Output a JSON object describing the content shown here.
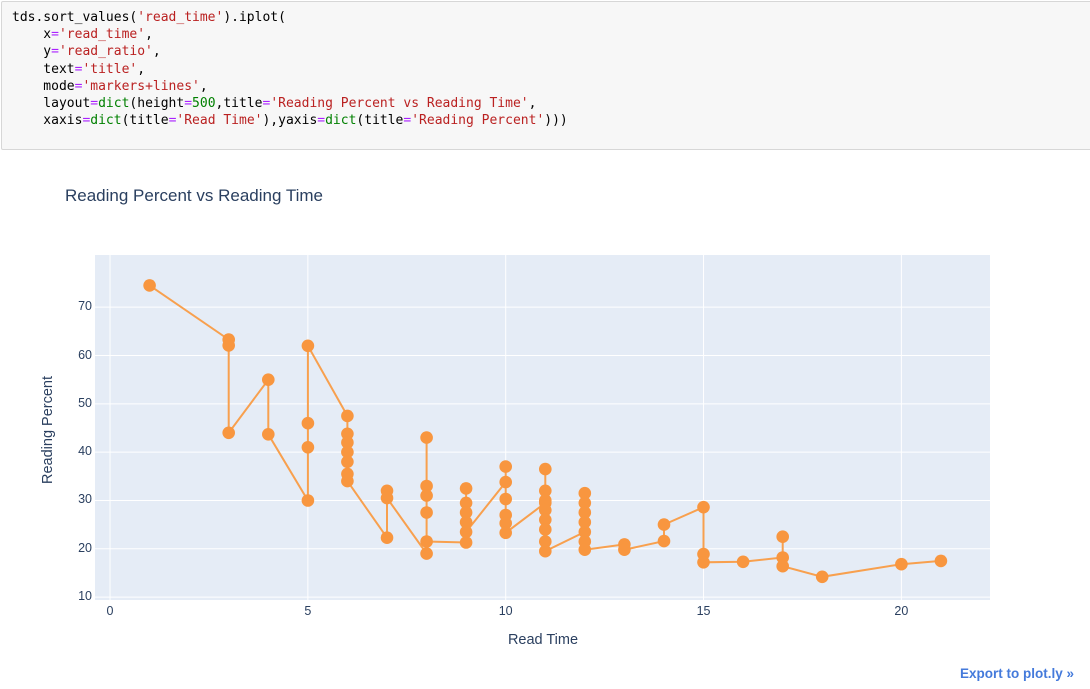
{
  "code_cell": {
    "lines": [
      [
        {
          "text": "tds.sort_values(",
          "type": "plain"
        },
        {
          "text": "'read_time'",
          "type": "string"
        },
        {
          "text": ").iplot(",
          "type": "plain"
        }
      ],
      [
        {
          "text": "    x",
          "type": "plain"
        },
        {
          "text": "=",
          "type": "operator"
        },
        {
          "text": "'read_time'",
          "type": "string"
        },
        {
          "text": ",",
          "type": "plain"
        }
      ],
      [
        {
          "text": "    y",
          "type": "plain"
        },
        {
          "text": "=",
          "type": "operator"
        },
        {
          "text": "'read_ratio'",
          "type": "string"
        },
        {
          "text": ",",
          "type": "plain"
        }
      ],
      [
        {
          "text": "    text",
          "type": "plain"
        },
        {
          "text": "=",
          "type": "operator"
        },
        {
          "text": "'title'",
          "type": "string"
        },
        {
          "text": ",",
          "type": "plain"
        }
      ],
      [
        {
          "text": "    mode",
          "type": "plain"
        },
        {
          "text": "=",
          "type": "operator"
        },
        {
          "text": "'markers+lines'",
          "type": "string"
        },
        {
          "text": ",",
          "type": "plain"
        }
      ],
      [
        {
          "text": "    layout",
          "type": "plain"
        },
        {
          "text": "=",
          "type": "operator"
        },
        {
          "text": "dict",
          "type": "builtin"
        },
        {
          "text": "(height",
          "type": "plain"
        },
        {
          "text": "=",
          "type": "operator"
        },
        {
          "text": "500",
          "type": "number"
        },
        {
          "text": ",title",
          "type": "plain"
        },
        {
          "text": "=",
          "type": "operator"
        },
        {
          "text": "'Reading Percent vs Reading Time'",
          "type": "string"
        },
        {
          "text": ",",
          "type": "plain"
        }
      ],
      [
        {
          "text": "    xaxis",
          "type": "plain"
        },
        {
          "text": "=",
          "type": "operator"
        },
        {
          "text": "dict",
          "type": "builtin"
        },
        {
          "text": "(title",
          "type": "plain"
        },
        {
          "text": "=",
          "type": "operator"
        },
        {
          "text": "'Read Time'",
          "type": "string"
        },
        {
          "text": "),yaxis",
          "type": "plain"
        },
        {
          "text": "=",
          "type": "operator"
        },
        {
          "text": "dict",
          "type": "builtin"
        },
        {
          "text": "(title",
          "type": "plain"
        },
        {
          "text": "=",
          "type": "operator"
        },
        {
          "text": "'Reading Percent'",
          "type": "string"
        },
        {
          "text": ")))",
          "type": "plain"
        }
      ]
    ]
  },
  "chart": {
    "title": "Reading Percent vs Reading Time",
    "xlabel": "Read Time",
    "ylabel": "Reading Percent",
    "export_label": "Export to plot.ly »"
  },
  "chart_data": {
    "type": "scatter",
    "mode": "markers+lines",
    "title": "Reading Percent vs Reading Time",
    "xlabel": "Read Time",
    "ylabel": "Reading Percent",
    "xticks": [
      0,
      5,
      10,
      15,
      20
    ],
    "yticks": [
      10,
      20,
      30,
      40,
      50,
      60,
      70
    ],
    "xlim": [
      -0.38,
      22.24
    ],
    "ylim": [
      9.4,
      80.8
    ],
    "grid": true,
    "legend": false,
    "marker_color": "#f8963f",
    "line_color": "#f8a04e",
    "plot_bg": "#e5ecf6",
    "grid_color": "#ffffff",
    "text_color": "#2a3f5f",
    "points": [
      [
        1,
        74.5
      ],
      [
        3,
        63.3
      ],
      [
        3,
        62.1
      ],
      [
        3,
        44
      ],
      [
        4,
        55
      ],
      [
        4,
        43.7
      ],
      [
        5,
        30
      ],
      [
        5,
        41
      ],
      [
        5,
        46
      ],
      [
        5,
        62
      ],
      [
        6,
        47.5
      ],
      [
        6,
        43.8
      ],
      [
        6,
        42
      ],
      [
        6,
        40
      ],
      [
        6,
        38
      ],
      [
        6,
        35.5
      ],
      [
        6,
        34
      ],
      [
        7,
        22.3
      ],
      [
        7,
        32
      ],
      [
        7,
        30.5
      ],
      [
        8,
        19
      ],
      [
        8,
        43
      ],
      [
        8,
        33
      ],
      [
        8,
        31
      ],
      [
        8,
        27.5
      ],
      [
        8,
        21.5
      ],
      [
        9,
        21.3
      ],
      [
        9,
        32.5
      ],
      [
        9,
        29.5
      ],
      [
        9,
        27.5
      ],
      [
        9,
        25.5
      ],
      [
        9,
        23.5
      ],
      [
        10,
        33.8
      ],
      [
        10,
        37
      ],
      [
        10,
        30.3
      ],
      [
        10,
        27
      ],
      [
        10,
        25.3
      ],
      [
        10,
        23.3
      ],
      [
        11,
        29.5
      ],
      [
        11,
        36.5
      ],
      [
        11,
        32
      ],
      [
        11,
        30
      ],
      [
        11,
        28
      ],
      [
        11,
        26
      ],
      [
        11,
        24
      ],
      [
        11,
        21.5
      ],
      [
        11,
        19.5
      ],
      [
        12,
        23.5
      ],
      [
        12,
        31.5
      ],
      [
        12,
        29.5
      ],
      [
        12,
        27.5
      ],
      [
        12,
        25.5
      ],
      [
        12,
        21.5
      ],
      [
        12,
        19.8
      ],
      [
        13,
        20.9
      ],
      [
        13,
        19.8
      ],
      [
        14,
        21.6
      ],
      [
        14,
        25
      ],
      [
        15,
        28.6
      ],
      [
        15,
        18.9
      ],
      [
        15,
        17.2
      ],
      [
        16,
        17.3
      ],
      [
        17,
        18.2
      ],
      [
        17,
        22.5
      ],
      [
        17,
        16.4
      ],
      [
        18,
        14.2
      ],
      [
        20,
        16.8
      ],
      [
        21,
        17.5
      ]
    ]
  }
}
